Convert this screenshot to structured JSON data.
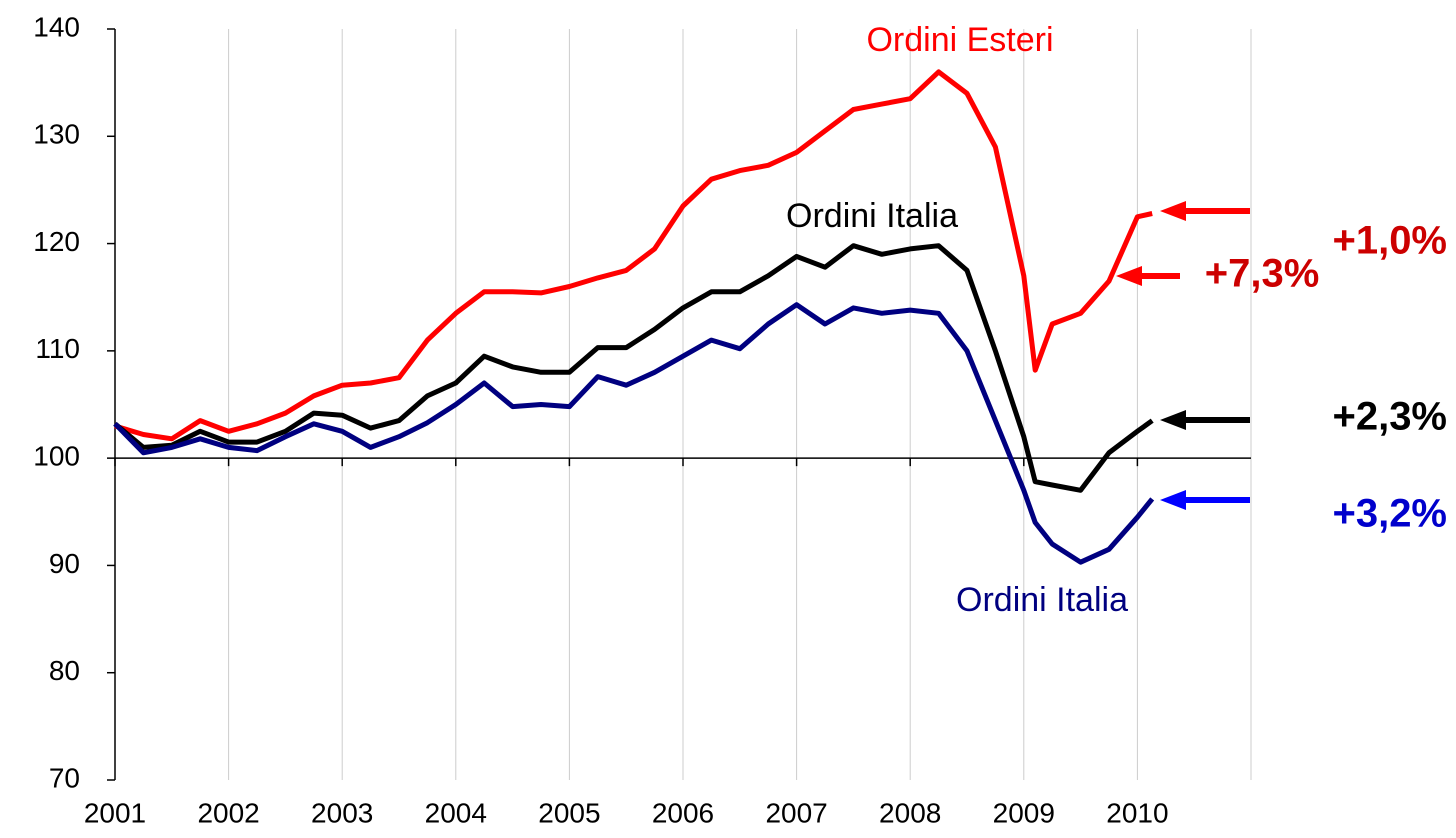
{
  "chart_data": {
    "type": "line",
    "x": [
      2001.0,
      2001.25,
      2001.5,
      2001.75,
      2002.0,
      2002.25,
      2002.5,
      2002.75,
      2003.0,
      2003.25,
      2003.5,
      2003.75,
      2004.0,
      2004.25,
      2004.5,
      2004.75,
      2005.0,
      2005.25,
      2005.5,
      2005.75,
      2006.0,
      2006.25,
      2006.5,
      2006.75,
      2007.0,
      2007.25,
      2007.5,
      2007.75,
      2008.0,
      2008.25,
      2008.5,
      2008.75,
      2009.0,
      2009.1,
      2009.25,
      2009.5,
      2009.75,
      2010.0,
      2010.13
    ],
    "series": [
      {
        "name": "Ordini Esteri",
        "color": "#ff0000",
        "values": [
          103,
          102.2,
          101.8,
          103.5,
          102.5,
          103.2,
          104.2,
          105.8,
          106.8,
          107.0,
          107.5,
          111,
          113.5,
          115.5,
          115.5,
          115.4,
          116,
          116.8,
          117.5,
          119.5,
          123.5,
          126,
          126.8,
          127.3,
          128.5,
          130.5,
          132.5,
          133,
          133.5,
          136,
          134,
          129,
          117,
          108.2,
          112.5,
          113.5,
          116.5,
          122.5,
          122.8
        ]
      },
      {
        "name": "Ordini Italia",
        "color": "#000000",
        "values": [
          103.2,
          101,
          101.2,
          102.5,
          101.5,
          101.5,
          102.5,
          104.2,
          104,
          102.8,
          103.5,
          105.8,
          107,
          109.5,
          108.5,
          108,
          108,
          110.3,
          110.3,
          112,
          114,
          115.5,
          115.5,
          117,
          118.8,
          117.8,
          119.8,
          119,
          119.5,
          119.8,
          117.5,
          110,
          102,
          97.8,
          97.5,
          97,
          100.5,
          102.5,
          103.5
        ]
      },
      {
        "name": "Ordini Italia",
        "color": "#000080",
        "values": [
          103.2,
          100.5,
          101,
          101.8,
          101,
          100.7,
          102,
          103.2,
          102.5,
          101,
          102,
          103.3,
          105,
          107,
          104.8,
          105,
          104.8,
          107.6,
          106.8,
          108,
          109.5,
          111,
          110.2,
          112.5,
          114.3,
          112.5,
          114,
          113.5,
          113.8,
          113.5,
          110,
          103.5,
          97,
          94,
          92,
          90.3,
          91.5,
          94.5,
          96.2
        ]
      }
    ],
    "annotations": [
      {
        "text": "+1,0%",
        "color": "#cc0000"
      },
      {
        "text": "+7,3%",
        "color": "#cc0000"
      },
      {
        "text": "+2,3%",
        "color": "#000000"
      },
      {
        "text": "+3,2%",
        "color": "#0000cc"
      }
    ],
    "xlim": [
      2001,
      2011
    ],
    "xticks": [
      2001,
      2002,
      2003,
      2004,
      2005,
      2006,
      2007,
      2008,
      2009,
      2010
    ],
    "ylim": [
      70,
      140
    ],
    "yticks": [
      70,
      80,
      90,
      100,
      110,
      120,
      130,
      140
    ],
    "grid": true
  }
}
